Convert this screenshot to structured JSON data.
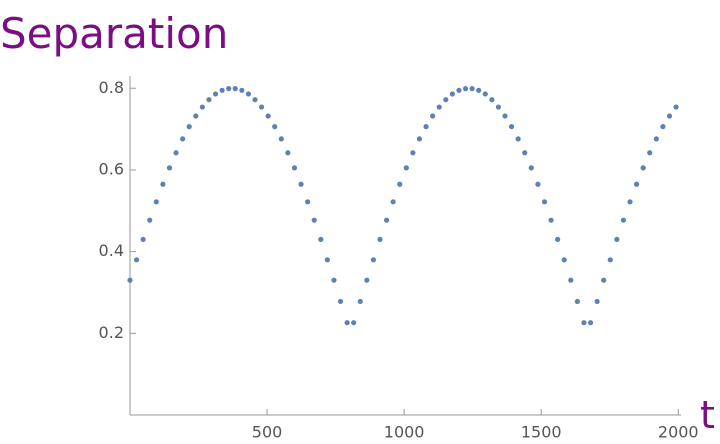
{
  "chart_data": {
    "type": "scatter",
    "title": "Separation",
    "x_label": "t",
    "x": [
      0,
      24,
      48,
      72,
      96,
      120,
      144,
      168,
      192,
      216,
      240,
      264,
      288,
      312,
      336,
      360,
      384,
      408,
      432,
      456,
      480,
      504,
      528,
      552,
      576,
      600,
      624,
      648,
      672,
      696,
      720,
      744,
      768,
      792,
      816,
      840,
      864,
      888,
      912,
      936,
      960,
      984,
      1008,
      1032,
      1056,
      1080,
      1104,
      1128,
      1152,
      1176,
      1200,
      1224,
      1248,
      1272,
      1296,
      1320,
      1344,
      1368,
      1392,
      1416,
      1440,
      1464,
      1488,
      1512,
      1536,
      1560,
      1584,
      1608,
      1632,
      1656,
      1680,
      1704,
      1728,
      1752,
      1776,
      1800,
      1824,
      1848,
      1872,
      1896,
      1920,
      1944,
      1968,
      1992
    ],
    "series": [
      {
        "name": "Separation",
        "color": "#5e81b5",
        "values": [
          0.33,
          0.38,
          0.43,
          0.477,
          0.522,
          0.565,
          0.605,
          0.642,
          0.676,
          0.706,
          0.732,
          0.754,
          0.772,
          0.786,
          0.795,
          0.799,
          0.799,
          0.795,
          0.786,
          0.772,
          0.754,
          0.732,
          0.706,
          0.676,
          0.642,
          0.605,
          0.565,
          0.522,
          0.477,
          0.43,
          0.38,
          0.33,
          0.278,
          0.226,
          0.226,
          0.278,
          0.33,
          0.38,
          0.43,
          0.477,
          0.522,
          0.565,
          0.605,
          0.642,
          0.676,
          0.706,
          0.732,
          0.754,
          0.772,
          0.786,
          0.795,
          0.799,
          0.799,
          0.795,
          0.786,
          0.772,
          0.754,
          0.732,
          0.706,
          0.676,
          0.642,
          0.605,
          0.565,
          0.522,
          0.477,
          0.43,
          0.38,
          0.33,
          0.278,
          0.226,
          0.226,
          0.278,
          0.33,
          0.38,
          0.43,
          0.477,
          0.522,
          0.565,
          0.605,
          0.642,
          0.676,
          0.706,
          0.732,
          0.754
        ]
      }
    ],
    "xlim": [
      0,
      2010
    ],
    "ylim": [
      0,
      0.83
    ],
    "xticks": [
      500,
      1000,
      1500,
      2000
    ],
    "yticks": [
      0.2,
      0.4,
      0.6,
      0.8
    ]
  }
}
